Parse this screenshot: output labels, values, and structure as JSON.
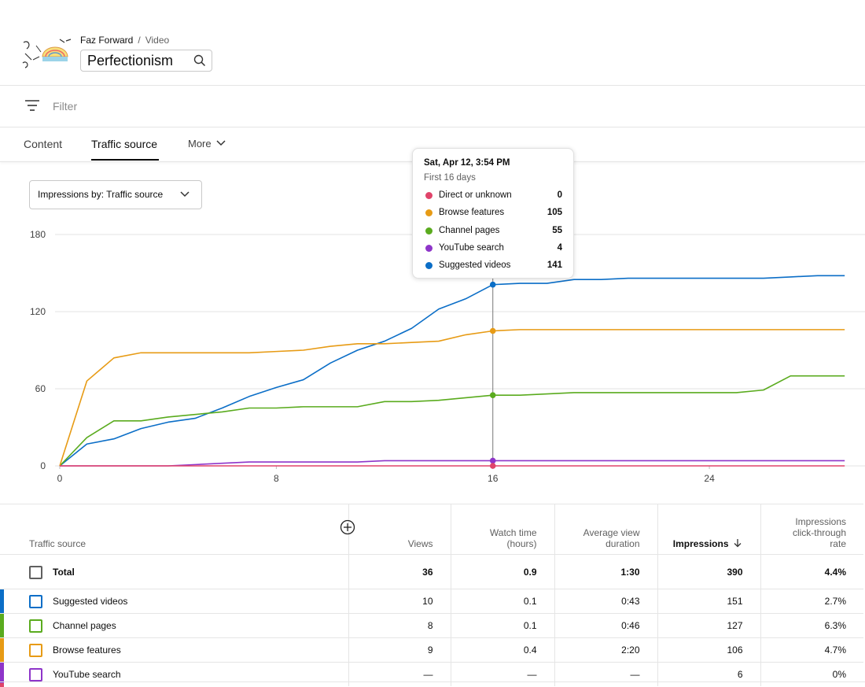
{
  "header": {
    "channel": "Faz Forward",
    "section": "Video",
    "title": "Perfectionism"
  },
  "filter": {
    "placeholder": "Filter"
  },
  "tabs": [
    "Content",
    "Traffic source",
    "More"
  ],
  "dropdown": "Impressions by: Traffic source",
  "chart_data": {
    "type": "line",
    "x": [
      0,
      1,
      2,
      3,
      4,
      5,
      6,
      7,
      8,
      9,
      10,
      11,
      12,
      13,
      14,
      15,
      16,
      17,
      18,
      19,
      20,
      21,
      22,
      23,
      24,
      25,
      26,
      27,
      28,
      29
    ],
    "xlim": [
      0,
      29.75
    ],
    "xticks": [
      0,
      8,
      16,
      24
    ],
    "ylim": [
      0,
      180
    ],
    "yticks": [
      0,
      60,
      120,
      180
    ],
    "grid": true,
    "series": [
      {
        "name": "Direct or unknown",
        "color": "#e0446a",
        "values": [
          0,
          0,
          0,
          0,
          0,
          0,
          0,
          0,
          0,
          0,
          0,
          0,
          0,
          0,
          0,
          0,
          0,
          0,
          0,
          0,
          0,
          0,
          0,
          0,
          0,
          0,
          0,
          0,
          0,
          0
        ]
      },
      {
        "name": "Browse features",
        "color": "#e79b15",
        "values": [
          0,
          66,
          84,
          88,
          88,
          88,
          88,
          88,
          89,
          90,
          93,
          95,
          95,
          96,
          97,
          102,
          105,
          106,
          106,
          106,
          106,
          106,
          106,
          106,
          106,
          106,
          106,
          106,
          106,
          106
        ]
      },
      {
        "name": "Channel pages",
        "color": "#5aab1e",
        "values": [
          0,
          22,
          35,
          35,
          38,
          40,
          42,
          45,
          45,
          46,
          46,
          46,
          50,
          50,
          51,
          53,
          55,
          55,
          56,
          57,
          57,
          57,
          57,
          57,
          57,
          57,
          59,
          70,
          70,
          70
        ]
      },
      {
        "name": "YouTube search",
        "color": "#8e35c9",
        "values": [
          0,
          0,
          0,
          0,
          0,
          1,
          2,
          3,
          3,
          3,
          3,
          3,
          4,
          4,
          4,
          4,
          4,
          4,
          4,
          4,
          4,
          4,
          4,
          4,
          4,
          4,
          4,
          4,
          4,
          4
        ]
      },
      {
        "name": "Suggested videos",
        "color": "#0b6ec7",
        "values": [
          0,
          17,
          21,
          29,
          34,
          37,
          45,
          54,
          61,
          67,
          80,
          90,
          97,
          107,
          122,
          130,
          141,
          142,
          142,
          145,
          145,
          146,
          146,
          146,
          146,
          146,
          146,
          147,
          148,
          148
        ]
      }
    ],
    "tooltip": {
      "title": "Sat, Apr 12, 3:54 PM",
      "subtitle": "First 16 days",
      "index": 16
    }
  },
  "table": {
    "columns": [
      "Traffic source",
      "Views",
      "Watch time (hours)",
      "Average view duration",
      "Impressions",
      "Impressions click-through rate"
    ],
    "rows": [
      [
        "Total",
        "36",
        "0.9",
        "1:30",
        "390",
        "4.4%"
      ],
      [
        "Suggested videos",
        "10",
        "0.1",
        "0:43",
        "151",
        "2.7%"
      ],
      [
        "Channel pages",
        "8",
        "0.1",
        "0:46",
        "127",
        "6.3%"
      ],
      [
        "Browse features",
        "9",
        "0.4",
        "2:20",
        "106",
        "4.7%"
      ],
      [
        "YouTube search",
        "—",
        "—",
        "—",
        "6",
        "0%"
      ]
    ]
  }
}
